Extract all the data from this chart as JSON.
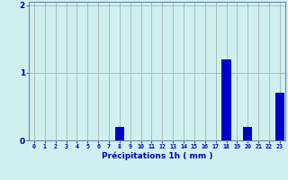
{
  "hours": [
    0,
    1,
    2,
    3,
    4,
    5,
    6,
    7,
    8,
    9,
    10,
    11,
    12,
    13,
    14,
    15,
    16,
    17,
    18,
    19,
    20,
    21,
    22,
    23
  ],
  "values": [
    0,
    0,
    0,
    0,
    0,
    0,
    0,
    0,
    0.2,
    0,
    0,
    0,
    0,
    0,
    0,
    0,
    0,
    0,
    1.2,
    0,
    0.2,
    0,
    0,
    0.7
  ],
  "bar_color": "#0000cc",
  "background_color": "#d0f0f0",
  "grid_color": "#aabcbc",
  "xlabel": "Précipitations 1h ( mm )",
  "xlabel_color": "#0000aa",
  "tick_color": "#0000aa",
  "axis_color": "#6688aa",
  "ylim": [
    0,
    2.05
  ],
  "yticks": [
    0,
    1,
    2
  ],
  "xlim": [
    -0.5,
    23.5
  ],
  "figsize": [
    3.2,
    2.0
  ],
  "dpi": 100
}
